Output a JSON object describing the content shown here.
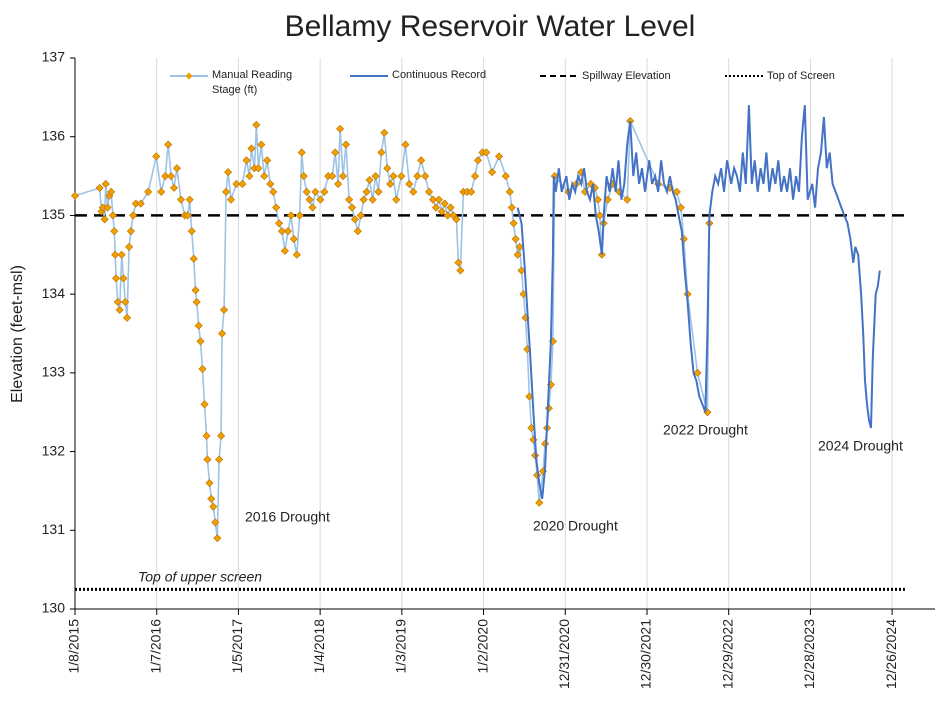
{
  "chart_data": {
    "type": "line",
    "title": "Bellamy Reservoir Water Level",
    "y_label": "Elevation (feet-msl)",
    "xlim": [
      "2015-01-08",
      "2025-07-05"
    ],
    "ylim": [
      130,
      137
    ],
    "yticks": [
      130,
      131,
      132,
      133,
      134,
      135,
      136,
      137
    ],
    "xticks": [
      {
        "value": "2015-01-08",
        "label": "1/8/2015"
      },
      {
        "value": "2016-01-07",
        "label": "1/7/2016"
      },
      {
        "value": "2017-01-05",
        "label": "1/5/2017"
      },
      {
        "value": "2018-01-04",
        "label": "1/4/2018"
      },
      {
        "value": "2019-01-03",
        "label": "1/3/2019"
      },
      {
        "value": "2020-01-02",
        "label": "1/2/2020"
      },
      {
        "value": "2020-12-31",
        "label": "12/31/2020"
      },
      {
        "value": "2021-12-30",
        "label": "12/30/2021"
      },
      {
        "value": "2022-12-29",
        "label": "12/29/2022"
      },
      {
        "value": "2023-12-28",
        "label": "12/28/2023"
      },
      {
        "value": "2024-12-26",
        "label": "12/26/2024"
      }
    ],
    "grid": "x",
    "legend": "top",
    "series": [
      {
        "name": "Manual Reading Stage (ft)",
        "color": "#9dc3e6",
        "marker_color": "#f0a000",
        "marker": "diamond",
        "x": [
          "2015-01-08",
          "2015-04-28",
          "2015-05-06",
          "2015-05-12",
          "2015-05-20",
          "2015-05-25",
          "2015-06-02",
          "2015-06-10",
          "2015-06-18",
          "2015-06-26",
          "2015-07-02",
          "2015-07-06",
          "2015-07-10",
          "2015-07-18",
          "2015-07-26",
          "2015-08-04",
          "2015-08-12",
          "2015-08-20",
          "2015-08-28",
          "2015-09-06",
          "2015-09-14",
          "2015-09-24",
          "2015-10-06",
          "2015-10-28",
          "2015-11-30",
          "2016-01-05",
          "2016-01-27",
          "2016-02-14",
          "2016-02-27",
          "2016-03-11",
          "2016-03-24",
          "2016-04-06",
          "2016-04-24",
          "2016-05-11",
          "2016-05-24",
          "2016-06-02",
          "2016-06-11",
          "2016-06-20",
          "2016-06-28",
          "2016-07-03",
          "2016-07-12",
          "2016-07-20",
          "2016-07-29",
          "2016-08-07",
          "2016-08-16",
          "2016-08-20",
          "2016-08-29",
          "2016-09-06",
          "2016-09-15",
          "2016-09-24",
          "2016-10-03",
          "2016-10-11",
          "2016-10-20",
          "2016-10-24",
          "2016-11-02",
          "2016-11-11",
          "2016-11-20",
          "2016-12-03",
          "2016-12-27",
          "2017-01-23",
          "2017-02-10",
          "2017-02-23",
          "2017-03-04",
          "2017-03-17",
          "2017-03-26",
          "2017-04-04",
          "2017-04-17",
          "2017-04-30",
          "2017-05-13",
          "2017-05-27",
          "2017-06-09",
          "2017-06-22",
          "2017-07-05",
          "2017-07-18",
          "2017-07-31",
          "2017-08-14",
          "2017-08-27",
          "2017-09-09",
          "2017-09-22",
          "2017-10-05",
          "2017-10-14",
          "2017-10-23",
          "2017-11-05",
          "2017-11-18",
          "2017-12-01",
          "2017-12-14",
          "2018-01-05",
          "2018-01-23",
          "2018-02-09",
          "2018-02-27",
          "2018-03-12",
          "2018-03-25",
          "2018-04-03",
          "2018-04-16",
          "2018-04-29",
          "2018-05-13",
          "2018-05-26",
          "2018-06-08",
          "2018-06-21",
          "2018-07-04",
          "2018-07-17",
          "2018-07-30",
          "2018-08-12",
          "2018-08-26",
          "2018-09-08",
          "2018-09-21",
          "2018-10-04",
          "2018-10-17",
          "2018-10-30",
          "2018-11-12",
          "2018-11-26",
          "2018-12-09",
          "2019-01-01",
          "2019-01-19",
          "2019-02-05",
          "2019-02-23",
          "2019-03-13",
          "2019-03-30",
          "2019-04-17",
          "2019-05-04",
          "2019-05-22",
          "2019-06-04",
          "2019-06-17",
          "2019-06-30",
          "2019-07-13",
          "2019-07-26",
          "2019-08-08",
          "2019-08-21",
          "2019-09-03",
          "2019-09-12",
          "2019-09-21",
          "2019-10-04",
          "2019-10-21",
          "2019-11-08",
          "2019-11-25",
          "2019-12-08",
          "2019-12-28",
          "2020-01-14",
          "2020-02-09",
          "2020-03-11",
          "2020-04-10",
          "2020-04-28",
          "2020-05-07",
          "2020-05-15",
          "2020-05-24",
          "2020-06-02",
          "2020-06-11",
          "2020-06-19",
          "2020-06-28",
          "2020-07-07",
          "2020-07-15",
          "2020-07-24",
          "2020-08-02",
          "2020-08-11",
          "2020-08-19",
          "2020-08-28",
          "2020-09-06",
          "2020-09-23",
          "2020-10-02",
          "2020-10-11",
          "2020-10-19",
          "2020-10-28",
          "2020-11-06",
          "2020-11-14",
          "2021-01-14",
          "2021-02-18",
          "2021-03-12",
          "2021-03-29",
          "2021-04-24",
          "2021-05-12",
          "2021-05-25",
          "2021-06-03",
          "2021-06-12",
          "2021-06-20",
          "2021-07-08",
          "2021-07-30",
          "2021-08-29",
          "2021-10-03",
          "2021-10-16",
          "2022-02-18",
          "2022-04-11",
          "2022-05-12",
          "2022-05-30",
          "2022-06-12",
          "2022-06-29",
          "2022-08-12",
          "2022-09-25",
          "2022-10-04"
        ],
        "values": [
          135.25,
          135.35,
          135.05,
          135.1,
          134.95,
          135.4,
          135.1,
          135.25,
          135.3,
          135.0,
          134.8,
          134.5,
          134.2,
          133.9,
          133.8,
          134.5,
          134.2,
          133.9,
          133.7,
          134.6,
          134.8,
          135.0,
          135.15,
          135.15,
          135.3,
          135.75,
          135.3,
          135.5,
          135.9,
          135.5,
          135.35,
          135.6,
          135.2,
          135.0,
          135.0,
          135.2,
          134.8,
          134.45,
          134.05,
          133.9,
          133.6,
          133.4,
          133.05,
          132.6,
          132.2,
          131.9,
          131.6,
          131.4,
          131.3,
          131.1,
          130.9,
          131.9,
          132.2,
          133.5,
          133.8,
          135.3,
          135.55,
          135.2,
          135.4,
          135.4,
          135.7,
          135.5,
          135.85,
          135.6,
          136.15,
          135.6,
          135.9,
          135.5,
          135.7,
          135.4,
          135.3,
          135.1,
          134.9,
          134.8,
          134.55,
          134.8,
          135.0,
          134.7,
          134.5,
          135.0,
          135.8,
          135.5,
          135.3,
          135.2,
          135.1,
          135.3,
          135.2,
          135.3,
          135.5,
          135.5,
          135.8,
          135.4,
          136.1,
          135.5,
          135.9,
          135.2,
          135.1,
          134.95,
          134.8,
          135.0,
          135.2,
          135.3,
          135.45,
          135.2,
          135.5,
          135.3,
          135.8,
          136.05,
          135.6,
          135.4,
          135.5,
          135.2,
          135.5,
          135.9,
          135.4,
          135.3,
          135.5,
          135.7,
          135.5,
          135.3,
          135.2,
          135.1,
          135.2,
          135.05,
          135.15,
          135.0,
          135.1,
          135.0,
          134.95,
          134.4,
          134.3,
          135.3,
          135.3,
          135.3,
          135.5,
          135.7,
          135.8,
          135.8,
          135.55,
          135.75,
          135.5,
          135.3,
          135.1,
          134.9,
          134.7,
          134.5,
          134.6,
          134.3,
          134.0,
          133.7,
          133.3,
          132.7,
          132.3,
          132.15,
          131.95,
          131.7,
          131.35,
          131.75,
          132.1,
          132.3,
          132.55,
          132.85,
          133.4,
          135.5,
          135.3,
          135.4,
          135.55,
          135.3,
          135.4,
          135.35,
          135.2,
          135.0,
          134.5,
          134.9,
          135.2,
          135.4,
          135.3,
          135.2,
          136.2,
          135.4,
          135.35,
          135.3,
          135.1,
          134.7,
          134.0,
          133.0,
          132.5,
          134.9
        ]
      },
      {
        "name": "Continuous Record",
        "color": "#4472c4",
        "x": [
          "2020-06-02",
          "2020-06-19",
          "2020-07-02",
          "2020-07-15",
          "2020-07-28",
          "2020-08-11",
          "2020-08-24",
          "2020-09-06",
          "2020-09-19",
          "2020-10-02",
          "2020-10-15",
          "2020-10-28",
          "2020-11-06",
          "2020-11-10",
          "2020-11-19",
          "2020-12-02",
          "2020-12-15",
          "2021-01-05",
          "2021-01-18",
          "2021-01-31",
          "2021-02-13",
          "2021-02-26",
          "2021-03-12",
          "2021-03-25",
          "2021-04-07",
          "2021-04-20",
          "2021-05-03",
          "2021-05-16",
          "2021-05-29",
          "2021-06-12",
          "2021-06-20",
          "2021-07-03",
          "2021-07-17",
          "2021-07-30",
          "2021-08-12",
          "2021-08-25",
          "2021-09-07",
          "2021-09-20",
          "2021-10-03",
          "2021-10-16",
          "2021-10-30",
          "2021-11-12",
          "2021-11-25",
          "2021-12-08",
          "2021-12-21",
          "2022-01-09",
          "2022-01-22",
          "2022-02-04",
          "2022-02-18",
          "2022-03-03",
          "2022-03-16",
          "2022-03-29",
          "2022-04-11",
          "2022-04-24",
          "2022-05-07",
          "2022-05-20",
          "2022-06-03",
          "2022-06-16",
          "2022-06-29",
          "2022-07-12",
          "2022-07-25",
          "2022-08-07",
          "2022-08-20",
          "2022-09-03",
          "2022-09-16",
          "2022-09-25",
          "2022-10-04",
          "2022-10-17",
          "2022-10-30",
          "2022-11-12",
          "2022-11-25",
          "2022-12-08",
          "2022-12-22",
          "2023-01-09",
          "2023-01-22",
          "2023-02-04",
          "2023-02-17",
          "2023-03-02",
          "2023-03-15",
          "2023-03-29",
          "2023-04-11",
          "2023-04-24",
          "2023-05-07",
          "2023-05-20",
          "2023-06-02",
          "2023-06-15",
          "2023-06-28",
          "2023-07-12",
          "2023-07-25",
          "2023-08-07",
          "2023-08-20",
          "2023-09-02",
          "2023-09-15",
          "2023-09-28",
          "2023-10-12",
          "2023-10-25",
          "2023-11-07",
          "2023-11-20",
          "2023-12-03",
          "2023-12-16",
          "2024-01-05",
          "2024-01-18",
          "2024-01-31",
          "2024-02-13",
          "2024-02-26",
          "2024-03-10",
          "2024-03-23",
          "2024-04-05",
          "2024-04-18",
          "2024-05-01",
          "2024-05-14",
          "2024-05-27",
          "2024-06-10",
          "2024-06-23",
          "2024-07-06",
          "2024-07-15",
          "2024-07-28",
          "2024-08-10",
          "2024-08-19",
          "2024-08-27",
          "2024-09-05",
          "2024-09-14",
          "2024-09-23",
          "2024-10-01",
          "2024-10-14",
          "2024-10-23",
          "2024-11-01"
        ],
        "values": [
          135.1,
          134.9,
          134.4,
          133.8,
          133.2,
          132.5,
          131.9,
          131.6,
          131.4,
          131.8,
          132.6,
          133.4,
          134.5,
          135.5,
          135.3,
          135.6,
          135.3,
          135.5,
          135.2,
          135.4,
          135.3,
          135.5,
          135.4,
          135.6,
          135.3,
          135.2,
          135.4,
          135.0,
          134.8,
          134.5,
          135.0,
          135.5,
          135.3,
          135.6,
          135.3,
          135.7,
          135.2,
          135.4,
          135.9,
          136.2,
          135.5,
          135.8,
          135.4,
          135.6,
          135.3,
          135.7,
          135.4,
          135.5,
          135.3,
          135.7,
          135.4,
          135.3,
          135.5,
          135.3,
          135.2,
          135.0,
          134.8,
          134.3,
          133.9,
          133.4,
          133.0,
          132.9,
          132.7,
          132.6,
          132.5,
          133.5,
          135.0,
          135.3,
          135.5,
          135.4,
          135.6,
          135.3,
          135.7,
          135.4,
          135.6,
          135.5,
          135.3,
          135.8,
          135.4,
          136.4,
          135.4,
          135.7,
          135.3,
          135.6,
          135.4,
          135.8,
          135.3,
          135.6,
          135.4,
          135.7,
          135.3,
          135.5,
          135.3,
          135.6,
          135.2,
          135.5,
          135.3,
          136.0,
          136.4,
          135.2,
          135.4,
          135.1,
          135.6,
          135.8,
          136.25,
          135.6,
          135.8,
          135.4,
          135.3,
          135.2,
          135.1,
          135.0,
          134.9,
          134.7,
          134.4,
          134.6,
          134.5,
          134.0,
          133.5,
          132.9,
          132.6,
          132.4,
          132.3,
          133.2,
          134.0,
          134.1,
          134.3
        ]
      }
    ],
    "reference_lines": [
      {
        "name": "Spillway Elevation",
        "value": 135,
        "style": "dashed",
        "color": "#000000"
      },
      {
        "name": "Top of Screen",
        "value": 130.25,
        "style": "dotted",
        "color": "#000000"
      }
    ],
    "annotations": [
      "2016 Drought",
      "2020 Drought",
      "2022 Drought",
      "2024 Drought",
      "Top of upper screen"
    ]
  }
}
